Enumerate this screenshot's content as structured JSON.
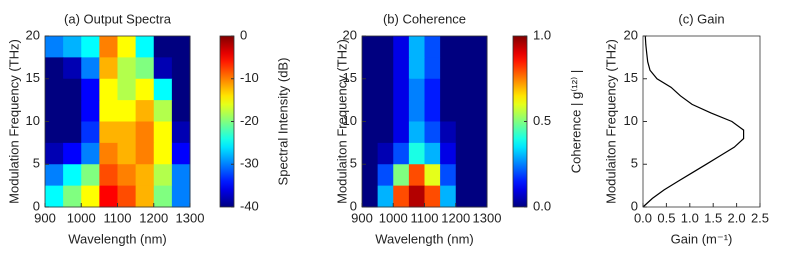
{
  "chart_data": [
    {
      "type": "heatmap",
      "title": "(a) Output Spectra",
      "xlabel": "Wavelength (nm)",
      "ylabel": "Modulation Frequency (THz)",
      "x": [
        925,
        975,
        1025,
        1075,
        1125,
        1175,
        1225,
        1275
      ],
      "y": [
        18.75,
        16.25,
        13.75,
        11.25,
        8.75,
        6.25,
        3.75,
        1.25
      ],
      "z": [
        [
          -30,
          -28,
          -25,
          -10,
          -15,
          -25,
          -40,
          -40
        ],
        [
          -40,
          -38,
          -30,
          -12,
          -18,
          -20,
          -38,
          -40
        ],
        [
          -40,
          -40,
          -35,
          -15,
          -18,
          -15,
          -25,
          -40
        ],
        [
          -40,
          -40,
          -35,
          -15,
          -15,
          -12,
          -18,
          -40
        ],
        [
          -40,
          -40,
          -33,
          -12,
          -12,
          -10,
          -15,
          -38
        ],
        [
          -38,
          -35,
          -30,
          -10,
          -12,
          -10,
          -15,
          -35
        ],
        [
          -30,
          -25,
          -20,
          -8,
          -10,
          -12,
          -18,
          -30
        ],
        [
          -25,
          -20,
          -15,
          -5,
          -8,
          -12,
          -20,
          -30
        ]
      ],
      "xlim": [
        900,
        1300
      ],
      "xticks": [
        900,
        1000,
        1100,
        1200,
        1300
      ],
      "ylim": [
        0,
        20
      ],
      "yticks": [
        0,
        5,
        10,
        15,
        20
      ],
      "colormap": "jet",
      "colorbar": {
        "label": "Spectral Intensity (dB)",
        "lim": [
          -40,
          0
        ],
        "ticks": [
          0,
          -10,
          -20,
          -30,
          -40
        ]
      }
    },
    {
      "type": "heatmap",
      "title": "(b) Coherence",
      "xlabel": "Wavelength (nm)",
      "ylabel": "Modulaiton Frequency (THz)",
      "x": [
        925,
        975,
        1025,
        1075,
        1125,
        1175,
        1225,
        1275
      ],
      "y": [
        18.75,
        16.25,
        13.75,
        11.25,
        8.75,
        6.25,
        3.75,
        1.25
      ],
      "z": [
        [
          0,
          0,
          0.1,
          0.3,
          0.2,
          0,
          0,
          0
        ],
        [
          0,
          0,
          0.1,
          0.3,
          0.2,
          0,
          0,
          0
        ],
        [
          0,
          0,
          0.1,
          0.25,
          0.15,
          0,
          0,
          0
        ],
        [
          0,
          0,
          0.1,
          0.25,
          0.15,
          0,
          0,
          0
        ],
        [
          0,
          0,
          0.1,
          0.3,
          0.2,
          0.05,
          0,
          0
        ],
        [
          0,
          0.05,
          0.2,
          0.4,
          0.3,
          0.1,
          0,
          0
        ],
        [
          0,
          0.2,
          0.5,
          0.8,
          0.6,
          0.2,
          0,
          0
        ],
        [
          0,
          0.3,
          0.8,
          0.95,
          0.8,
          0.3,
          0,
          0
        ]
      ],
      "xlim": [
        900,
        1300
      ],
      "xticks": [
        900,
        1000,
        1100,
        1200,
        1300
      ],
      "ylim": [
        0,
        20
      ],
      "yticks": [
        0,
        5,
        10,
        15,
        20
      ],
      "colormap": "jet",
      "colorbar": {
        "label": "Coherence  | g⁽¹²⁾ |",
        "lim": [
          0,
          1
        ],
        "ticks": [
          {
            "value": 1,
            "label": "1.0"
          },
          {
            "value": 0.5,
            "label": "0.5"
          },
          {
            "value": 0,
            "label": "0.0"
          }
        ]
      }
    },
    {
      "type": "line",
      "title": "(c) Gain",
      "xlabel": "Gain (m⁻¹)",
      "ylabel": "Modulaiton Frequency (THz)",
      "x": [
        0,
        0.2,
        0.45,
        0.75,
        1.05,
        1.35,
        1.65,
        1.95,
        2.15,
        2.15,
        1.9,
        1.45,
        1.05,
        0.8,
        0.6,
        0.3,
        0.15,
        0.1,
        0.08,
        0.06,
        0.05
      ],
      "values": [
        0,
        1,
        2,
        3,
        4,
        5,
        6,
        7,
        8,
        9,
        10,
        11,
        12,
        13,
        14,
        15,
        16,
        17,
        18,
        19,
        20
      ],
      "color": "#000000",
      "xlim": [
        0,
        2.5
      ],
      "xticks": [
        {
          "value": 0,
          "label": "0.0"
        },
        {
          "value": 0.5,
          "label": "0.5"
        },
        {
          "value": 1,
          "label": "1.0"
        },
        {
          "value": 1.5,
          "label": "1.5"
        },
        {
          "value": 2,
          "label": "2.0"
        },
        {
          "value": 2.5,
          "label": "2.5"
        }
      ],
      "ylim": [
        0,
        20
      ],
      "yticks": [
        0,
        5,
        10,
        15,
        20
      ]
    }
  ]
}
